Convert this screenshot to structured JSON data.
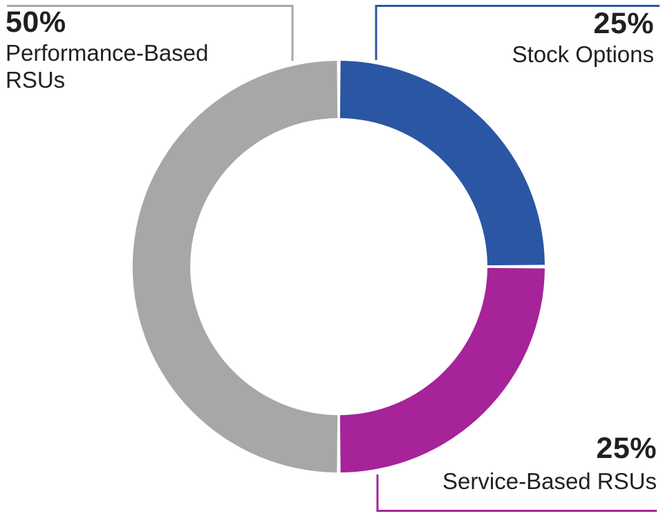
{
  "page": {
    "background_color": "#ffffff",
    "text_color": "#231f20"
  },
  "chart_data": {
    "type": "pie",
    "subtype": "donut",
    "title": "",
    "direction": "clockwise",
    "start_angle_deg_from_top": 0,
    "hole_ratio": 0.72,
    "gap_between_slices": true,
    "legend_position": "callouts-with-leader-lines",
    "categories": [
      "Stock Options",
      "Service-Based RSUs",
      "Performance-Based RSUs"
    ],
    "values": [
      25,
      25,
      50
    ],
    "value_labels": [
      "25%",
      "25%",
      "50%"
    ],
    "colors": [
      "#2b56a4",
      "#a62399",
      "#a7a7a7"
    ]
  },
  "callouts": {
    "text_color": "#231f20",
    "performance": {
      "pct": "50%",
      "line1": "Performance-Based",
      "line2": "RSUs"
    },
    "stock": {
      "pct": "25%",
      "label": "Stock Options"
    },
    "service": {
      "pct": "25%",
      "label": "Service-Based RSUs"
    }
  }
}
